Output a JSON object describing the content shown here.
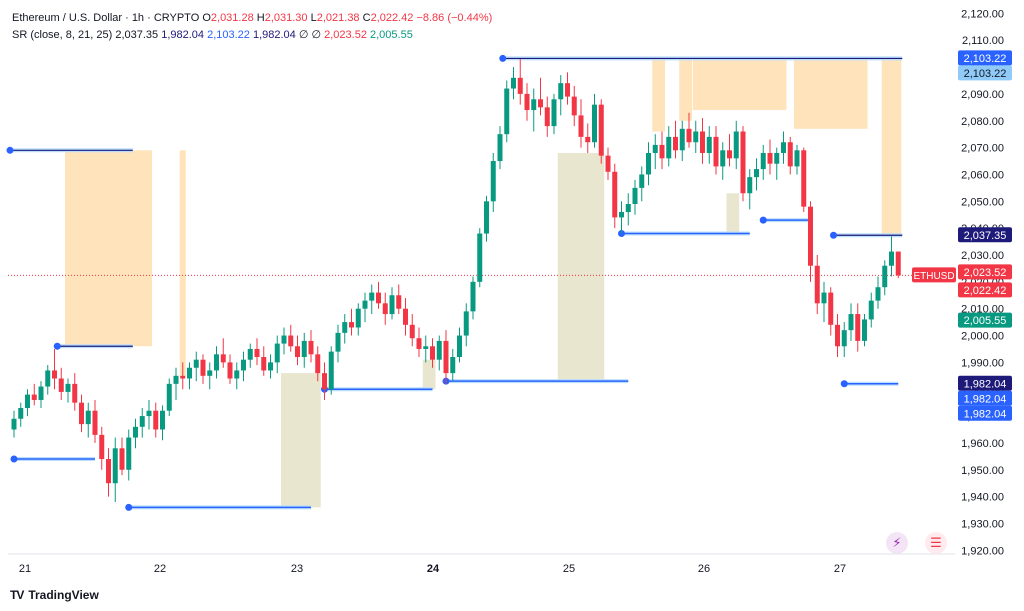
{
  "header": {
    "symbol_line": "Ethereum / U.S. Dollar · 1h · CRYPTO",
    "ohlc": [
      {
        "k": "O",
        "v": "2,031.28"
      },
      {
        "k": "H",
        "v": "2,031.30"
      },
      {
        "k": "L",
        "v": "2,021.38"
      },
      {
        "k": "C",
        "v": "2,022.42"
      }
    ],
    "change": "−8.86 (−0.44%)",
    "indicator_label": "SR (close, 8, 21, 25)",
    "indicator_values": [
      "2,037.35",
      "1,982.04",
      "2,103.22",
      "1,982.04",
      "∅",
      "∅",
      "2,023.52",
      "2,005.55"
    ]
  },
  "brand": {
    "name": "TradingView",
    "logo": "TV"
  },
  "icons": {
    "replay": "replay-icon",
    "flag": "flag-icon"
  },
  "colors": {
    "up": "#089981",
    "down": "#f23645",
    "support": "#2962ff",
    "resistance": "#1e1a7a",
    "res_zone": "#ffe0b2",
    "sup_zone": "#e5e3c9"
  },
  "chart_data": {
    "type": "candlestick",
    "symbol_tag": "ETHUSD",
    "x_ticks": [
      "21",
      "22",
      "23",
      "24",
      "25",
      "26",
      "27"
    ],
    "y_ticks": [
      "2,120.00",
      "2,110.00",
      "2,100.00",
      "2,090.00",
      "2,080.00",
      "2,070.00",
      "2,060.00",
      "2,050.00",
      "2,040.00",
      "2,030.00",
      "2,020.00",
      "2,010.00",
      "2,000.00",
      "1,990.00",
      "1,980.00",
      "1,970.00",
      "1,960.00",
      "1,950.00",
      "1,940.00",
      "1,930.00",
      "1,920.00"
    ],
    "y_tick_values": [
      2120,
      2110,
      2100,
      2090,
      2080,
      2070,
      2060,
      2050,
      2040,
      2030,
      2020,
      2010,
      2000,
      1990,
      1980,
      1970,
      1960,
      1950,
      1940,
      1930,
      1920
    ],
    "ylim": [
      1919,
      2122
    ],
    "last_price": 2022.42,
    "price_labels": [
      {
        "text": "2,103.22",
        "value": 2103.22,
        "style": "blue"
      },
      {
        "text": "2,103.22",
        "value": 2103.22,
        "style": "light"
      },
      {
        "text": "2,037.35",
        "value": 2037.35,
        "style": "navy"
      },
      {
        "text": "2,023.52",
        "value": 2023.52,
        "style": "red"
      },
      {
        "text": "2,022.42",
        "value": 2022.42,
        "style": "red"
      },
      {
        "text": "2,005.55",
        "value": 2005.55,
        "style": "green"
      },
      {
        "text": "1,982.04",
        "value": 1982.04,
        "style": "navy"
      },
      {
        "text": "1,982.04",
        "value": 1982.04,
        "style": "blue"
      },
      {
        "text": "1,982.04",
        "value": 1982.04,
        "style": "blue"
      }
    ],
    "candles": [
      [
        1965.0,
        1972.0,
        1962.0,
        1969.0
      ],
      [
        1969.0,
        1975.0,
        1966.0,
        1973.0
      ],
      [
        1973.0,
        1980.0,
        1970.0,
        1978.0
      ],
      [
        1978.0,
        1982.0,
        1974.0,
        1976.0
      ],
      [
        1976.0,
        1983.0,
        1973.0,
        1981.0
      ],
      [
        1981.0,
        1989.0,
        1978.0,
        1987.0
      ],
      [
        1987.0,
        1995.0,
        1980.0,
        1984.0
      ],
      [
        1984.0,
        1988.0,
        1976.0,
        1979.0
      ],
      [
        1979.0,
        1984.0,
        1975.0,
        1982.0
      ],
      [
        1982.0,
        1986.0,
        1972.0,
        1975.0
      ],
      [
        1975.0,
        1978.0,
        1964.0,
        1967.0
      ],
      [
        1967.0,
        1975.0,
        1962.0,
        1972.0
      ],
      [
        1972.0,
        1976.0,
        1960.0,
        1963.0
      ],
      [
        1963.0,
        1966.0,
        1950.0,
        1954.0
      ],
      [
        1954.0,
        1958.0,
        1940.0,
        1945.0
      ],
      [
        1945.0,
        1962.0,
        1938.0,
        1958.0
      ],
      [
        1958.0,
        1962.0,
        1948.0,
        1950.0
      ],
      [
        1950.0,
        1965.0,
        1946.0,
        1962.0
      ],
      [
        1962.0,
        1969.0,
        1958.0,
        1966.0
      ],
      [
        1966.0,
        1973.0,
        1962.0,
        1970.0
      ],
      [
        1970.0,
        1976.0,
        1965.0,
        1972.0
      ],
      [
        1972.0,
        1975.0,
        1962.0,
        1965.0
      ],
      [
        1965.0,
        1974.0,
        1961.0,
        1972.0
      ],
      [
        1972.0,
        1984.0,
        1970.0,
        1982.0
      ],
      [
        1982.0,
        1988.0,
        1976.0,
        1985.0
      ],
      [
        1985.0,
        1990.0,
        1980.0,
        1984.0
      ],
      [
        1984.0,
        1990.0,
        1980.0,
        1988.0
      ],
      [
        1988.0,
        1994.0,
        1983.0,
        1991.0
      ],
      [
        1991.0,
        1993.0,
        1982.0,
        1985.0
      ],
      [
        1985.0,
        1990.0,
        1980.0,
        1987.0
      ],
      [
        1987.0,
        1996.0,
        1984.0,
        1993.0
      ],
      [
        1993.0,
        1999.0,
        1988.0,
        1990.0
      ],
      [
        1990.0,
        1993.0,
        1982.0,
        1984.0
      ],
      [
        1984.0,
        1990.0,
        1980.0,
        1987.0
      ],
      [
        1987.0,
        1994.0,
        1983.0,
        1991.0
      ],
      [
        1991.0,
        1997.0,
        1988.0,
        1995.0
      ],
      [
        1995.0,
        1999.0,
        1989.0,
        1992.0
      ],
      [
        1992.0,
        1996.0,
        1985.0,
        1987.0
      ],
      [
        1987.0,
        1993.0,
        1984.0,
        1990.0
      ],
      [
        1990.0,
        2000.0,
        1986.0,
        1997.0
      ],
      [
        1997.0,
        2003.0,
        1993.0,
        2000.0
      ],
      [
        2000.0,
        2004.0,
        1994.0,
        1996.0
      ],
      [
        1996.0,
        2000.0,
        1989.0,
        1992.0
      ],
      [
        1992.0,
        2001.0,
        1988.0,
        1998.0
      ],
      [
        1998.0,
        2002.0,
        1990.0,
        1993.0
      ],
      [
        1993.0,
        1996.0,
        1983.0,
        1986.0
      ],
      [
        1986.0,
        1990.0,
        1976.0,
        1980.0
      ],
      [
        1980.0,
        1996.0,
        1978.0,
        1994.0
      ],
      [
        1994.0,
        2004.0,
        1990.0,
        2001.0
      ],
      [
        2001.0,
        2008.0,
        1997.0,
        2005.0
      ],
      [
        2005.0,
        2010.0,
        2000.0,
        2003.0
      ],
      [
        2003.0,
        2012.0,
        2000.0,
        2010.0
      ],
      [
        2010.0,
        2016.0,
        2005.0,
        2013.0
      ],
      [
        2013.0,
        2019.0,
        2008.0,
        2016.0
      ],
      [
        2016.0,
        2020.0,
        2010.0,
        2012.0
      ],
      [
        2012.0,
        2016.0,
        2004.0,
        2008.0
      ],
      [
        2008.0,
        2018.0,
        2006.0,
        2015.0
      ],
      [
        2015.0,
        2019.0,
        2008.0,
        2010.0
      ],
      [
        2010.0,
        2014.0,
        2000.0,
        2004.0
      ],
      [
        2004.0,
        2008.0,
        1996.0,
        1999.0
      ],
      [
        1999.0,
        2003.0,
        1992.0,
        1995.0
      ],
      [
        1995.0,
        2000.0,
        1990.0,
        1996.0
      ],
      [
        1996.0,
        1999.0,
        1988.0,
        1991.0
      ],
      [
        1991.0,
        2000.0,
        1987.0,
        1998.0
      ],
      [
        1998.0,
        2002.0,
        1982.0,
        1986.0
      ],
      [
        1986.0,
        1995.0,
        1983.0,
        1992.0
      ],
      [
        1992.0,
        2003.0,
        1990.0,
        2000.0
      ],
      [
        2000.0,
        2012.0,
        1996.0,
        2009.0
      ],
      [
        2009.0,
        2022.0,
        2006.0,
        2020.0
      ],
      [
        2020.0,
        2040.0,
        2018.0,
        2038.0
      ],
      [
        2038.0,
        2052.0,
        2035.0,
        2050.0
      ],
      [
        2050.0,
        2068.0,
        2046.0,
        2065.0
      ],
      [
        2065.0,
        2078.0,
        2062.0,
        2075.0
      ],
      [
        2075.0,
        2095.0,
        2072.0,
        2092.0
      ],
      [
        2092.0,
        2100.0,
        2088.0,
        2096.0
      ],
      [
        2096.0,
        2103.0,
        2086.0,
        2090.0
      ],
      [
        2090.0,
        2094.0,
        2080.0,
        2084.0
      ],
      [
        2084.0,
        2092.0,
        2076.0,
        2088.0
      ],
      [
        2088.0,
        2096.0,
        2082.0,
        2085.0
      ],
      [
        2085.0,
        2089.0,
        2074.0,
        2078.0
      ],
      [
        2078.0,
        2090.0,
        2075.0,
        2088.0
      ],
      [
        2088.0,
        2097.0,
        2082.0,
        2094.0
      ],
      [
        2094.0,
        2098.0,
        2086.0,
        2089.0
      ],
      [
        2089.0,
        2093.0,
        2078.0,
        2082.0
      ],
      [
        2082.0,
        2088.0,
        2070.0,
        2074.0
      ],
      [
        2074.0,
        2079.0,
        2068.0,
        2072.0
      ],
      [
        2072.0,
        2090.0,
        2070.0,
        2086.0
      ],
      [
        2086.0,
        2088.0,
        2064.0,
        2067.0
      ],
      [
        2067.0,
        2070.0,
        2058.0,
        2061.0
      ],
      [
        2061.0,
        2064.0,
        2040.0,
        2044.0
      ],
      [
        2044.0,
        2050.0,
        2038.0,
        2046.0
      ],
      [
        2046.0,
        2053.0,
        2041.0,
        2049.0
      ],
      [
        2049.0,
        2058.0,
        2045.0,
        2055.0
      ],
      [
        2055.0,
        2063.0,
        2050.0,
        2060.0
      ],
      [
        2060.0,
        2072.0,
        2056.0,
        2068.0
      ],
      [
        2068.0,
        2075.0,
        2062.0,
        2071.0
      ],
      [
        2071.0,
        2076.0,
        2062.0,
        2066.0
      ],
      [
        2066.0,
        2078.0,
        2063.0,
        2074.0
      ],
      [
        2074.0,
        2080.0,
        2066.0,
        2069.0
      ],
      [
        2069.0,
        2080.0,
        2065.0,
        2077.0
      ],
      [
        2077.0,
        2083.0,
        2070.0,
        2072.0
      ],
      [
        2072.0,
        2080.0,
        2068.0,
        2076.0
      ],
      [
        2076.0,
        2081.0,
        2064.0,
        2068.0
      ],
      [
        2068.0,
        2078.0,
        2064.0,
        2074.0
      ],
      [
        2074.0,
        2078.0,
        2060.0,
        2063.0
      ],
      [
        2063.0,
        2072.0,
        2058.0,
        2069.0
      ],
      [
        2069.0,
        2075.0,
        2063.0,
        2066.0
      ],
      [
        2066.0,
        2080.0,
        2062.0,
        2076.0
      ],
      [
        2076.0,
        2078.0,
        2050.0,
        2053.0
      ],
      [
        2053.0,
        2062.0,
        2047.0,
        2059.0
      ],
      [
        2059.0,
        2066.0,
        2054.0,
        2062.0
      ],
      [
        2062.0,
        2071.0,
        2058.0,
        2068.0
      ],
      [
        2068.0,
        2073.0,
        2060.0,
        2064.0
      ],
      [
        2064.0,
        2070.0,
        2058.0,
        2068.0
      ],
      [
        2068.0,
        2076.0,
        2064.0,
        2072.0
      ],
      [
        2072.0,
        2074.0,
        2060.0,
        2063.0
      ],
      [
        2063.0,
        2071.0,
        2060.0,
        2069.0
      ],
      [
        2069.0,
        2070.0,
        2046.0,
        2048.0
      ],
      [
        2048.0,
        2050.0,
        2020.0,
        2026.0
      ],
      [
        2026.0,
        2030.0,
        2008.0,
        2012.0
      ],
      [
        2012.0,
        2020.0,
        2005.0,
        2016.0
      ],
      [
        2016.0,
        2018.0,
        2000.0,
        2004.0
      ],
      [
        2004.0,
        2008.0,
        1992.0,
        1996.0
      ],
      [
        1996.0,
        2005.0,
        1992.0,
        2002.0
      ],
      [
        2002.0,
        2012.0,
        1998.0,
        2008.0
      ],
      [
        2008.0,
        2012.0,
        1994.0,
        1998.0
      ],
      [
        1998.0,
        2008.0,
        1996.0,
        2006.0
      ],
      [
        2006.0,
        2016.0,
        2003.0,
        2013.0
      ],
      [
        2013.0,
        2022.0,
        2010.0,
        2018.0
      ],
      [
        2018.0,
        2028.0,
        2015.0,
        2026.0
      ],
      [
        2026.0,
        2037.0,
        2022.0,
        2031.28
      ],
      [
        2031.28,
        2031.3,
        2021.38,
        2022.42
      ]
    ],
    "sr_resistance_lines": [
      {
        "i0": 0,
        "i1": 17,
        "price": 2069.0
      },
      {
        "i0": 73,
        "i1": 131,
        "price": 2103.22
      },
      {
        "i0": 122,
        "i1": 131,
        "price": 2037.35
      },
      {
        "i0": 7,
        "i1": 17,
        "price": 1996.0
      }
    ],
    "sr_support_lines": [
      {
        "i0": 0,
        "i1": 12,
        "price": 1954.0
      },
      {
        "i0": 17,
        "i1": 44,
        "price": 1936.0
      },
      {
        "i0": 46,
        "i1": 62,
        "price": 1980.0
      },
      {
        "i0": 64,
        "i1": 91,
        "price": 1983.0
      },
      {
        "i0": 90,
        "i1": 109,
        "price": 2038.0
      },
      {
        "i0": 111,
        "i1": 118,
        "price": 2043.0
      },
      {
        "i0": 123,
        "i1": 131,
        "price": 1982.04
      }
    ],
    "resistance_zones": [
      {
        "i0": 8,
        "i1": 20,
        "top": 2069.0,
        "bottom": 1996.0
      },
      {
        "i0": 25,
        "i1": 25,
        "top": 2069.0,
        "bottom": 1985.0
      },
      {
        "i0": 95,
        "i1": 96,
        "top": 2103.0,
        "bottom": 2076.0
      },
      {
        "i0": 99,
        "i1": 100,
        "top": 2103.0,
        "bottom": 2080.0
      },
      {
        "i0": 101,
        "i1": 114,
        "top": 2103.0,
        "bottom": 2084.0
      },
      {
        "i0": 116,
        "i1": 126,
        "top": 2103.0,
        "bottom": 2077.0
      },
      {
        "i0": 129,
        "i1": 131,
        "top": 2103.0,
        "bottom": 2037.0
      }
    ],
    "support_zones": [
      {
        "i0": 40,
        "i1": 45,
        "top": 1986.0,
        "bottom": 1936.0
      },
      {
        "i0": 61,
        "i1": 62,
        "top": 1991.0,
        "bottom": 1980.0
      },
      {
        "i0": 81,
        "i1": 87,
        "top": 2068.0,
        "bottom": 1983.0
      },
      {
        "i0": 106,
        "i1": 107,
        "top": 2053.0,
        "bottom": 2038.0
      }
    ]
  }
}
